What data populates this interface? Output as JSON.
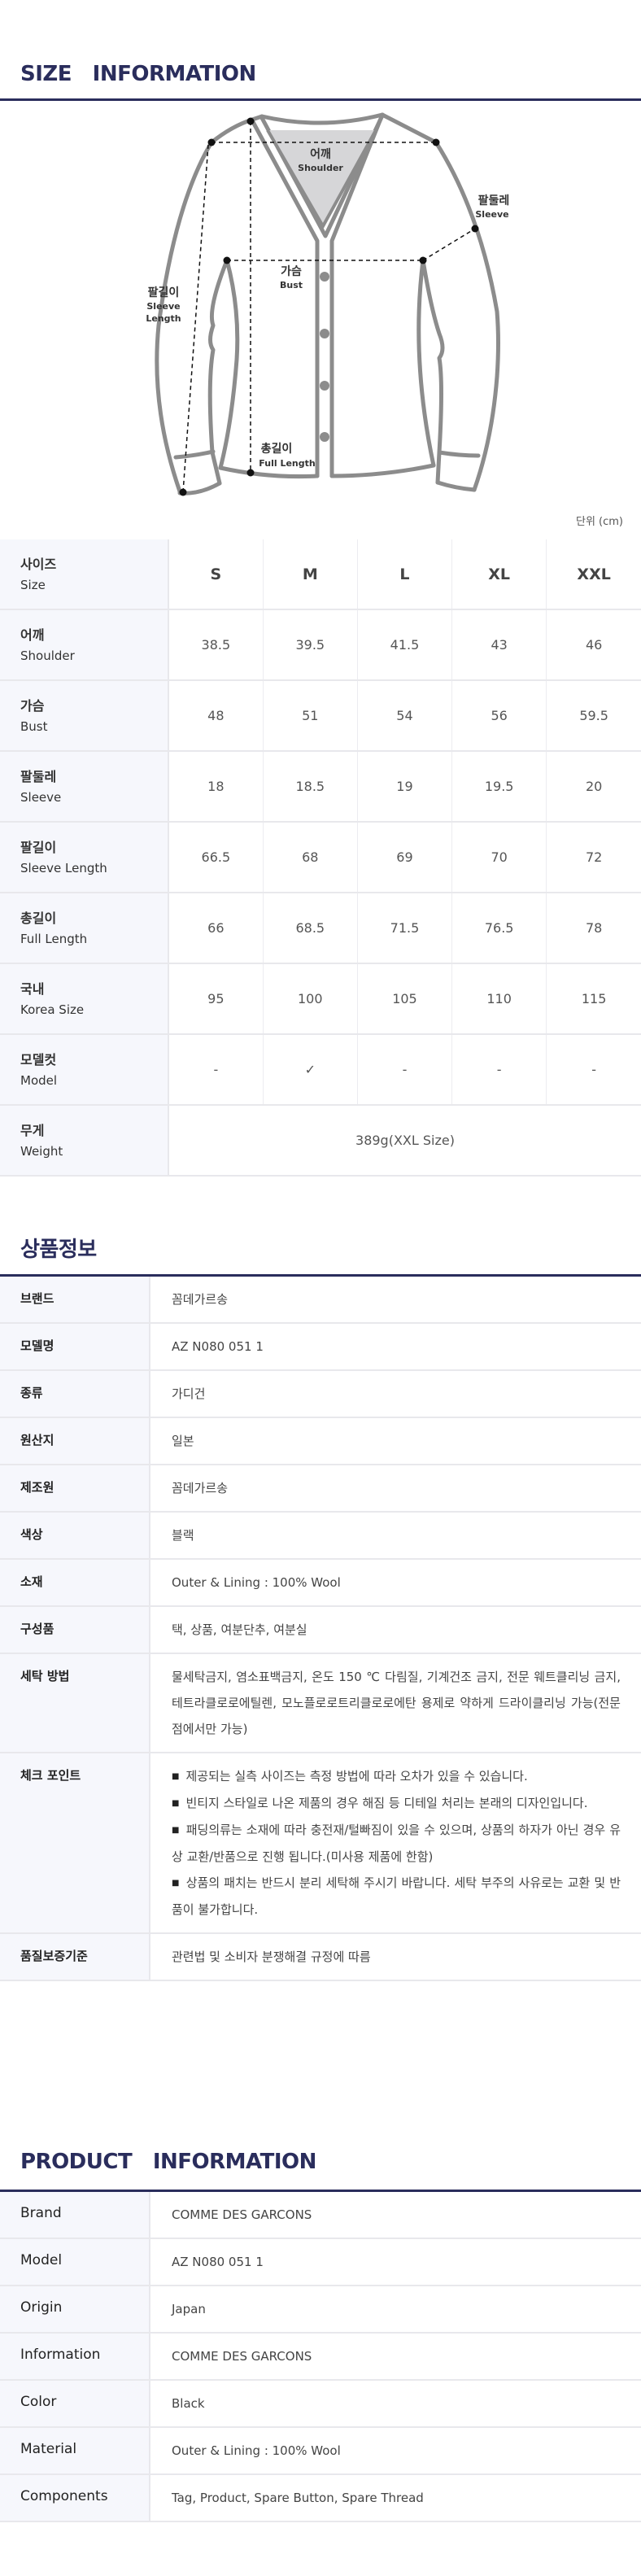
{
  "size_section": {
    "title": "SIZE   INFORMATION",
    "unit_label": "단위 (cm)",
    "diagram_labels": {
      "shoulder_ko": "어깨",
      "shoulder_en": "Shoulder",
      "sleeve_ko": "팔둘레",
      "sleeve_en": "Sleeve",
      "bust_ko": "가슴",
      "bust_en": "Bust",
      "sleeve_length_ko": "팔길이",
      "sleeve_length_en1": "Sleeve",
      "sleeve_length_en2": "Length",
      "full_length_ko": "총길이",
      "full_length_en": "Full Length"
    },
    "header": {
      "ko": "사이즈",
      "en": "Size",
      "sizes": [
        "S",
        "M",
        "L",
        "XL",
        "XXL"
      ]
    },
    "rows": [
      {
        "ko": "어깨",
        "en": "Shoulder",
        "values": [
          "38.5",
          "39.5",
          "41.5",
          "43",
          "46"
        ]
      },
      {
        "ko": "가슴",
        "en": "Bust",
        "values": [
          "48",
          "51",
          "54",
          "56",
          "59.5"
        ]
      },
      {
        "ko": "팔둘레",
        "en": "Sleeve",
        "values": [
          "18",
          "18.5",
          "19",
          "19.5",
          "20"
        ]
      },
      {
        "ko": "팔길이",
        "en": "Sleeve Length",
        "values": [
          "66.5",
          "68",
          "69",
          "70",
          "72"
        ]
      },
      {
        "ko": "총길이",
        "en": "Full Length",
        "values": [
          "66",
          "68.5",
          "71.5",
          "76.5",
          "78"
        ]
      },
      {
        "ko": "국내",
        "en": "Korea Size",
        "values": [
          "95",
          "100",
          "105",
          "110",
          "115"
        ]
      },
      {
        "ko": "모델컷",
        "en": "Model",
        "values": [
          "-",
          "✓",
          "-",
          "-",
          "-"
        ]
      }
    ],
    "weight": {
      "ko": "무게",
      "en": "Weight",
      "value": "389g(XXL  Size)"
    }
  },
  "product_info_ko": {
    "title": "상품정보",
    "rows": [
      {
        "label": "브랜드",
        "value": "꼼데가르송"
      },
      {
        "label": "모델명",
        "value": "AZ N080 051 1"
      },
      {
        "label": "종류",
        "value": "가디건"
      },
      {
        "label": "원산지",
        "value": "일본"
      },
      {
        "label": "제조원",
        "value": "꼼데가르송"
      },
      {
        "label": "색상",
        "value": "블랙"
      },
      {
        "label": "소재",
        "value": "Outer & Lining : 100%  Wool"
      },
      {
        "label": "구성품",
        "value": "택, 상품, 여분단추, 여분실"
      },
      {
        "label": "세탁 방법",
        "value": "물세탁금지, 염소표백금지, 온도 150 ℃ 다림질, 기계건조 금지, 전문 웨트클리닝 금지, 테트라클로로에틸렌, 모노플로로트리클로로에탄 용제로 약하게 드라이클리닝 가능(전문점에서만 가능)"
      }
    ],
    "checkpoint": {
      "label": "체크 포인트",
      "bullet": "■",
      "items": [
        "제공되는 실측 사이즈는 측정 방법에 따라 오차가 있을 수 있습니다.",
        "빈티지 스타일로 나온 제품의 경우 해짐 등 디테일 처리는 본래의 디자인입니다.",
        "패딩의류는 소재에 따라 충전재/털빠짐이 있을 수 있으며, 상품의 하자가 아닌 경우 유상 교환/반품으로 진행 됩니다.(미사용 제품에 한함)",
        "상품의 패치는 반드시 분리 세탁해 주시기 바랍니다. 세탁 부주의 사유로는 교환 및 반품이 불가합니다."
      ]
    },
    "quality": {
      "label": "품질보증기준",
      "value": "관련법 및 소비자 분쟁해결 규정에 따름"
    }
  },
  "product_info_en": {
    "title": "PRODUCT   INFORMATION",
    "rows": [
      {
        "label": "Brand",
        "value": "COMME  DES  GARCONS"
      },
      {
        "label": "Model",
        "value": "AZ N080 051 1"
      },
      {
        "label": "Origin",
        "value": "Japan"
      },
      {
        "label": "Information",
        "value": "COMME  DES  GARCONS"
      },
      {
        "label": "Color",
        "value": "Black"
      },
      {
        "label": "Material",
        "value": "Outer & Lining : 100%  Wool"
      },
      {
        "label": "Components",
        "value": "Tag, Product, Spare  Button, Spare  Thread"
      }
    ]
  },
  "colors": {
    "accent_navy": "#2a2d5c",
    "label_bg": "#f6f7fc",
    "diagram_gray": "#8c8c8c"
  }
}
